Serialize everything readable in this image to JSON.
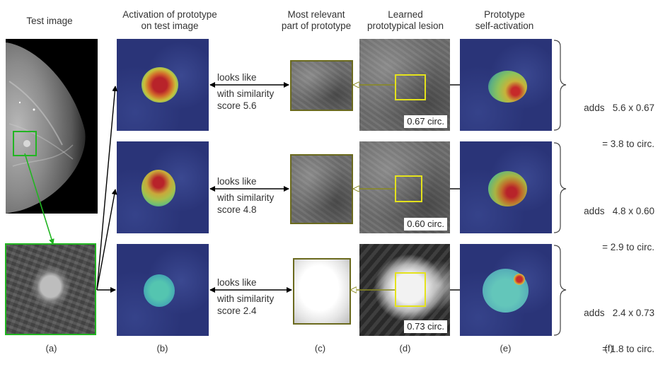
{
  "headers": {
    "test_image": "Test image",
    "activation_line1": "Activation of prototype",
    "activation_line2": "on test image",
    "relevant_line1": "Most relevant",
    "relevant_line2": "part of prototype",
    "learned_line1": "Learned",
    "learned_line2": "prototypical lesion",
    "self_line1": "Prototype",
    "self_line2": "self-activation"
  },
  "rows": [
    {
      "looks_like": "looks like",
      "with_similarity": "with similarity",
      "score": "score 5.6",
      "circ_label": "0.67 circ.",
      "adds_line1": "adds   5.6 x 0.67",
      "adds_line2": "= 3.8 to circ."
    },
    {
      "looks_like": "looks like",
      "with_similarity": "with similarity",
      "score": "score 4.8",
      "circ_label": "0.60 circ.",
      "adds_line1": "adds   4.8 x 0.60",
      "adds_line2": "= 2.9 to circ."
    },
    {
      "looks_like": "looks like",
      "with_similarity": "with similarity",
      "score": "score 2.4",
      "circ_label": "0.73 circ.",
      "adds_line1": "adds   2.4 x 0.73",
      "adds_line2": "= 1.8 to circ."
    }
  ],
  "panel_labels": [
    "(a)",
    "(b)",
    "(c)",
    "(d)",
    "(e)",
    "(f)"
  ],
  "colors": {
    "heatmap_background": "#2a3478",
    "highlight_box": "#e4e21c",
    "zoom_box": "#22b522",
    "arrow": "#000000"
  }
}
